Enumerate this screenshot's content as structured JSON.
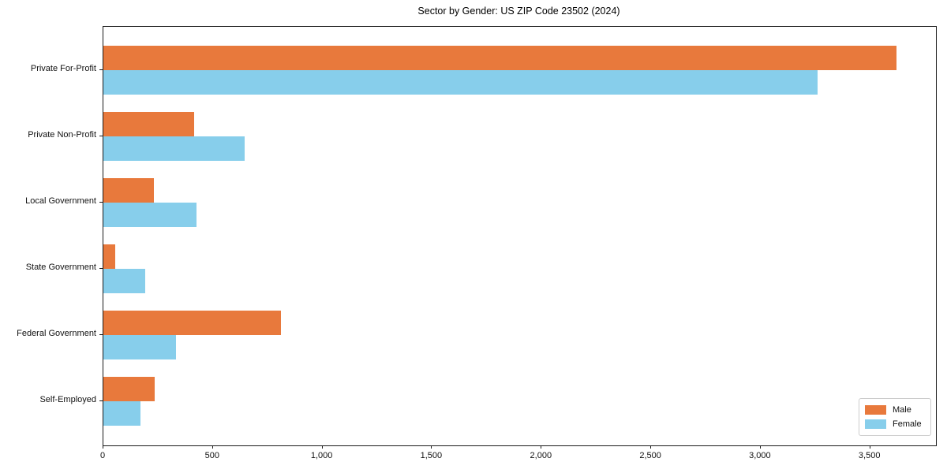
{
  "title": "Sector by Gender: US ZIP Code 23502 (2024)",
  "chart_data": {
    "type": "bar",
    "orientation": "horizontal",
    "title": "Sector by Gender: US ZIP Code 23502 (2024)",
    "xlabel": "",
    "ylabel": "",
    "categories": [
      "Private For-Profit",
      "Private Non-Profit",
      "Local Government",
      "State Government",
      "Federal Government",
      "Self-Employed"
    ],
    "series": [
      {
        "name": "Male",
        "color": "#e8793c",
        "values": [
          3620,
          415,
          230,
          55,
          810,
          235
        ]
      },
      {
        "name": "Female",
        "color": "#87ceeb",
        "values": [
          3260,
          645,
          425,
          190,
          330,
          170
        ]
      }
    ],
    "xlim": [
      0,
      3800
    ],
    "xticks": [
      0,
      500,
      1000,
      1500,
      2000,
      2500,
      3000,
      3500
    ],
    "xtick_labels": [
      "0",
      "500",
      "1,000",
      "1,500",
      "2,000",
      "2,500",
      "3,000",
      "3,500"
    ],
    "grid": false,
    "legend": {
      "position": "lower right",
      "entries": [
        "Male",
        "Female"
      ]
    }
  }
}
